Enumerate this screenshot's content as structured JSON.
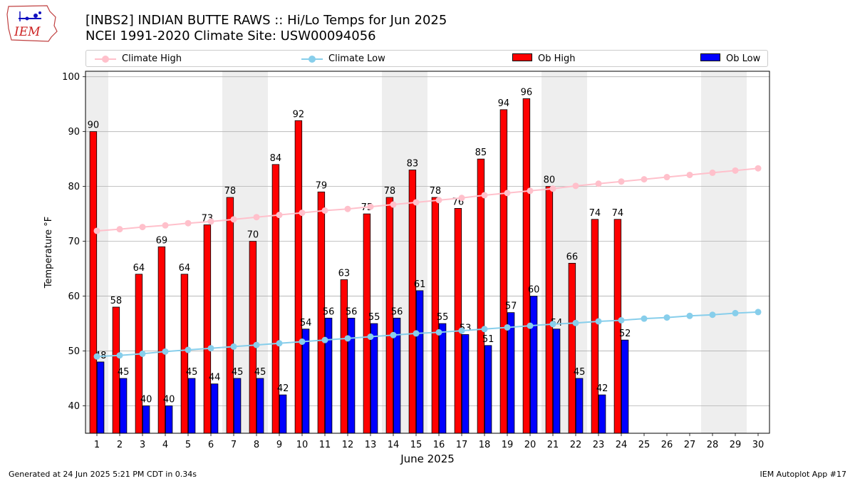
{
  "header": {
    "title_line1": "[INBS2] INDIAN BUTTE RAWS :: Hi/Lo Temps for Jun 2025",
    "title_line2": "NCEI 1991-2020 Climate Site: USW00094056",
    "logo_text": "IEM"
  },
  "footer": {
    "left": "Generated at 24 Jun 2025 5:21 PM CDT in 0.34s",
    "right": "IEM Autoplot App #17"
  },
  "colors": {
    "ob_high": "#ff0000",
    "ob_low": "#0000ff",
    "climate_high": "#ffc0cb",
    "climate_low": "#87ceeb",
    "weekend_shade": "#eeeeee",
    "grid": "#b0b0b0"
  },
  "chart_data": {
    "type": "bar",
    "xlabel": "June 2025",
    "ylabel": "Temperature °F",
    "ylim": [
      35,
      101
    ],
    "xlim": [
      0.5,
      30.5
    ],
    "yticks": [
      40,
      50,
      60,
      70,
      80,
      90,
      100
    ],
    "xticks": [
      1,
      2,
      3,
      4,
      5,
      6,
      7,
      8,
      9,
      10,
      11,
      12,
      13,
      14,
      15,
      16,
      17,
      18,
      19,
      20,
      21,
      22,
      23,
      24,
      25,
      26,
      27,
      28,
      29,
      30
    ],
    "grid": "horizontal",
    "legend_position": "top",
    "shaded_ranges": [
      [
        0.5,
        1.5
      ],
      [
        6.5,
        8.5
      ],
      [
        13.5,
        15.5
      ],
      [
        20.5,
        22.5
      ],
      [
        27.5,
        29.5
      ]
    ],
    "series": [
      {
        "name": "Climate High",
        "kind": "line",
        "x": [
          1,
          2,
          3,
          4,
          5,
          6,
          7,
          8,
          9,
          10,
          11,
          12,
          13,
          14,
          15,
          16,
          17,
          18,
          19,
          20,
          21,
          22,
          23,
          24,
          25,
          26,
          27,
          28,
          29,
          30
        ],
        "values": [
          71.9,
          72.2,
          72.6,
          72.9,
          73.3,
          73.6,
          74.0,
          74.4,
          74.8,
          75.2,
          75.6,
          75.9,
          76.3,
          76.7,
          77.1,
          77.5,
          77.9,
          78.4,
          78.8,
          79.2,
          79.6,
          80.1,
          80.5,
          80.9,
          81.3,
          81.7,
          82.1,
          82.5,
          82.9,
          83.3
        ]
      },
      {
        "name": "Climate Low",
        "kind": "line",
        "x": [
          1,
          2,
          3,
          4,
          5,
          6,
          7,
          8,
          9,
          10,
          11,
          12,
          13,
          14,
          15,
          16,
          17,
          18,
          19,
          20,
          21,
          22,
          23,
          24,
          25,
          26,
          27,
          28,
          29,
          30
        ],
        "values": [
          49.0,
          49.2,
          49.5,
          49.9,
          50.2,
          50.5,
          50.8,
          51.1,
          51.4,
          51.7,
          52.0,
          52.3,
          52.6,
          52.9,
          53.2,
          53.4,
          53.7,
          54.0,
          54.3,
          54.6,
          54.9,
          55.1,
          55.4,
          55.6,
          55.9,
          56.1,
          56.4,
          56.6,
          56.9,
          57.1
        ]
      },
      {
        "name": "Ob High",
        "kind": "bar",
        "x": [
          1,
          2,
          3,
          4,
          5,
          6,
          7,
          8,
          9,
          10,
          11,
          12,
          13,
          14,
          15,
          16,
          17,
          18,
          19,
          20,
          21,
          22,
          23,
          24
        ],
        "values": [
          90,
          58,
          64,
          69,
          64,
          73,
          78,
          70,
          84,
          92,
          79,
          63,
          75,
          78,
          83,
          78,
          76,
          85,
          94,
          96,
          80,
          66,
          74,
          74
        ]
      },
      {
        "name": "Ob Low",
        "kind": "bar",
        "x": [
          1,
          2,
          3,
          4,
          5,
          6,
          7,
          8,
          9,
          10,
          11,
          12,
          13,
          14,
          15,
          16,
          17,
          18,
          19,
          20,
          21,
          22,
          23,
          24
        ],
        "values": [
          48,
          45,
          40,
          40,
          45,
          44,
          45,
          45,
          42,
          54,
          56,
          56,
          55,
          56,
          61,
          55,
          53,
          51,
          57,
          60,
          54,
          45,
          42,
          52
        ]
      }
    ]
  }
}
